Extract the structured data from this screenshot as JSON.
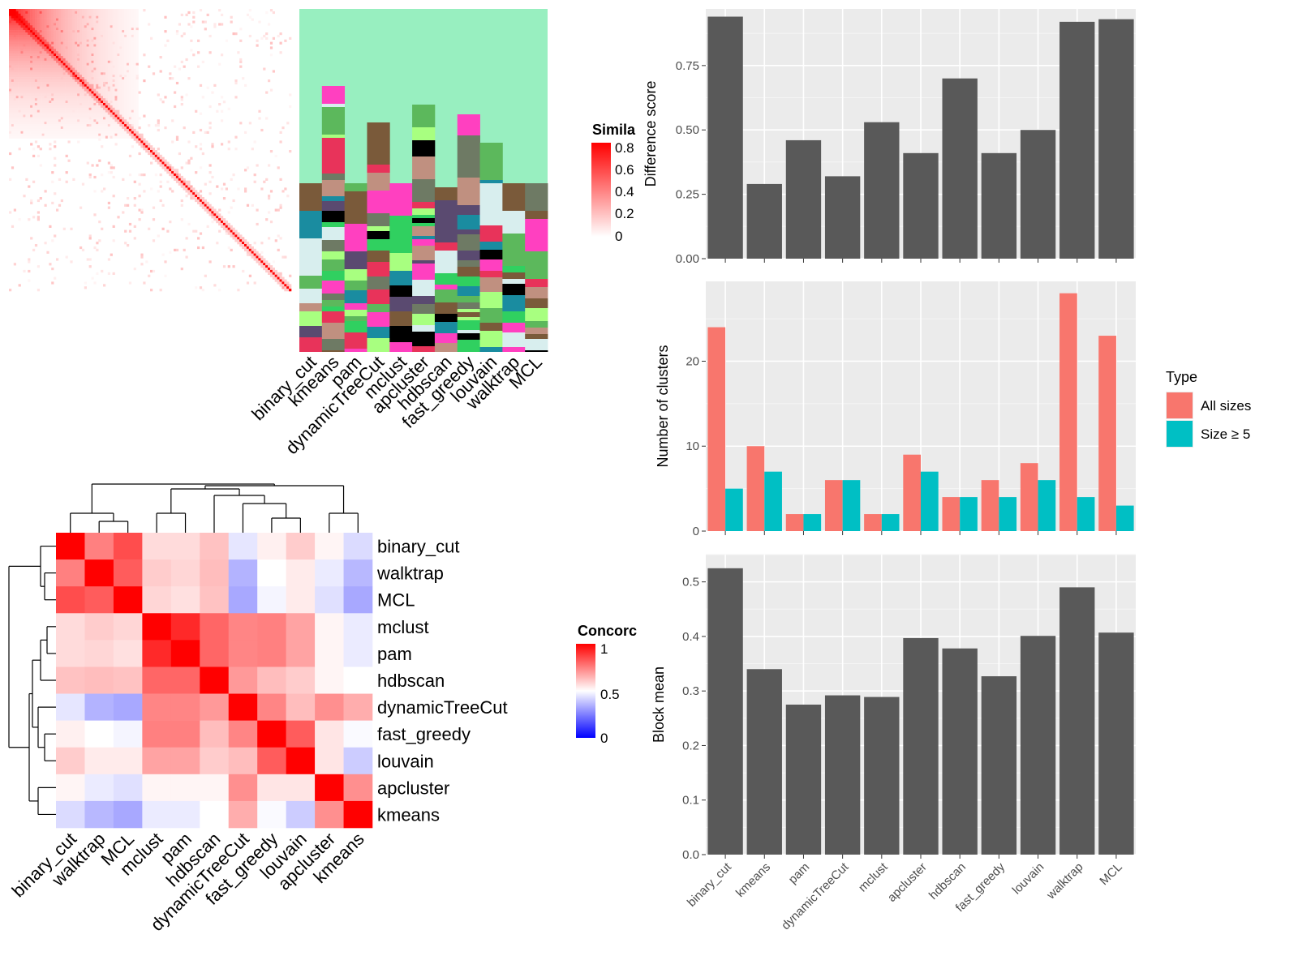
{
  "colors": {
    "bar": "#595959",
    "panel_bg": "#ebebeb",
    "grid": "#ffffff",
    "all_sizes": "#f8766d",
    "size_ge_5": "#00bfc4",
    "heat_high": "#ff0000",
    "heat_mid": "#ffffff",
    "heat_low": "#0000ff"
  },
  "chart_data": [
    {
      "id": "similarity_heatmap",
      "type": "heatmap",
      "legend_title": "Simila",
      "legend_ticks": [
        "0.8",
        "0.6",
        "0.4",
        "0.2",
        "0"
      ],
      "columns": [
        "binary_cut",
        "kmeans",
        "pam",
        "dynamicTreeCut",
        "mclust",
        "apcluster",
        "hdbscan",
        "fast_greedy",
        "louvain",
        "walktrap",
        "MCL"
      ]
    },
    {
      "id": "concordance_heatmap",
      "type": "heatmap",
      "legend_title": "Concorc",
      "legend_ticks": [
        "1",
        "0.5",
        "0"
      ],
      "rows": [
        "binary_cut",
        "walktrap",
        "MCL",
        "mclust",
        "pam",
        "hdbscan",
        "dynamicTreeCut",
        "fast_greedy",
        "louvain",
        "apcluster",
        "kmeans"
      ],
      "columns": [
        "binary_cut",
        "walktrap",
        "MCL",
        "mclust",
        "pam",
        "hdbscan",
        "dynamicTreeCut",
        "fast_greedy",
        "louvain",
        "apcluster",
        "kmeans"
      ],
      "values": [
        [
          1.0,
          0.75,
          0.85,
          0.57,
          0.57,
          0.62,
          0.45,
          0.53,
          0.6,
          0.52,
          0.43
        ],
        [
          0.75,
          1.0,
          0.82,
          0.6,
          0.58,
          0.63,
          0.35,
          0.5,
          0.54,
          0.46,
          0.36
        ],
        [
          0.85,
          0.82,
          1.0,
          0.58,
          0.56,
          0.62,
          0.33,
          0.48,
          0.54,
          0.44,
          0.33
        ],
        [
          0.57,
          0.6,
          0.58,
          1.0,
          0.92,
          0.8,
          0.74,
          0.75,
          0.68,
          0.52,
          0.46
        ],
        [
          0.57,
          0.58,
          0.56,
          0.92,
          1.0,
          0.8,
          0.74,
          0.75,
          0.68,
          0.52,
          0.46
        ],
        [
          0.62,
          0.63,
          0.62,
          0.8,
          0.8,
          1.0,
          0.7,
          0.63,
          0.6,
          0.52,
          0.5
        ],
        [
          0.45,
          0.35,
          0.33,
          0.74,
          0.74,
          0.7,
          1.0,
          0.74,
          0.63,
          0.72,
          0.66
        ],
        [
          0.53,
          0.5,
          0.48,
          0.75,
          0.75,
          0.63,
          0.74,
          1.0,
          0.82,
          0.55,
          0.49
        ],
        [
          0.6,
          0.54,
          0.54,
          0.68,
          0.68,
          0.6,
          0.63,
          0.82,
          1.0,
          0.55,
          0.4
        ],
        [
          0.52,
          0.46,
          0.44,
          0.52,
          0.52,
          0.52,
          0.72,
          0.55,
          0.55,
          1.0,
          0.72
        ],
        [
          0.43,
          0.36,
          0.33,
          0.46,
          0.46,
          0.5,
          0.66,
          0.49,
          0.4,
          0.72,
          1.0
        ]
      ]
    },
    {
      "id": "difference_score",
      "type": "bar",
      "categories": [
        "binary_cut",
        "kmeans",
        "pam",
        "dynamicTreeCut",
        "mclust",
        "apcluster",
        "hdbscan",
        "fast_greedy",
        "louvain",
        "walktrap",
        "MCL"
      ],
      "values": [
        0.94,
        0.29,
        0.46,
        0.32,
        0.53,
        0.41,
        0.7,
        0.41,
        0.5,
        0.92,
        0.93
      ],
      "ylabel": "Difference score",
      "ylim": [
        0,
        0.97
      ],
      "yticks": [
        0,
        0.25,
        0.5,
        0.75
      ],
      "ytick_labels": [
        "0.00",
        "0.25",
        "0.50",
        "0.75"
      ]
    },
    {
      "id": "number_of_clusters",
      "type": "bar",
      "categories": [
        "binary_cut",
        "kmeans",
        "pam",
        "dynamicTreeCut",
        "mclust",
        "apcluster",
        "hdbscan",
        "fast_greedy",
        "louvain",
        "walktrap",
        "MCL"
      ],
      "series": [
        {
          "name": "All sizes",
          "values": [
            24,
            10,
            2,
            6,
            2,
            9,
            4,
            6,
            8,
            28,
            23
          ]
        },
        {
          "name": "Size ≥ 5",
          "values": [
            5,
            7,
            2,
            6,
            2,
            7,
            4,
            4,
            6,
            4,
            3
          ]
        }
      ],
      "ylabel": "Number of clusters",
      "ylim": [
        0,
        29.4
      ],
      "yticks": [
        0,
        10,
        20
      ],
      "ytick_labels": [
        "0",
        "10",
        "20"
      ],
      "legend_title": "Type",
      "legend_position": "right"
    },
    {
      "id": "block_mean",
      "type": "bar",
      "categories": [
        "binary_cut",
        "kmeans",
        "pam",
        "dynamicTreeCut",
        "mclust",
        "apcluster",
        "hdbscan",
        "fast_greedy",
        "louvain",
        "walktrap",
        "MCL"
      ],
      "values": [
        0.525,
        0.34,
        0.275,
        0.292,
        0.289,
        0.397,
        0.378,
        0.327,
        0.401,
        0.49,
        0.407
      ],
      "ylabel": "Block mean",
      "ylim": [
        0,
        0.55
      ],
      "yticks": [
        0,
        0.1,
        0.2,
        0.3,
        0.4,
        0.5
      ],
      "ytick_labels": [
        "0.0",
        "0.1",
        "0.2",
        "0.3",
        "0.4",
        "0.5"
      ]
    }
  ]
}
